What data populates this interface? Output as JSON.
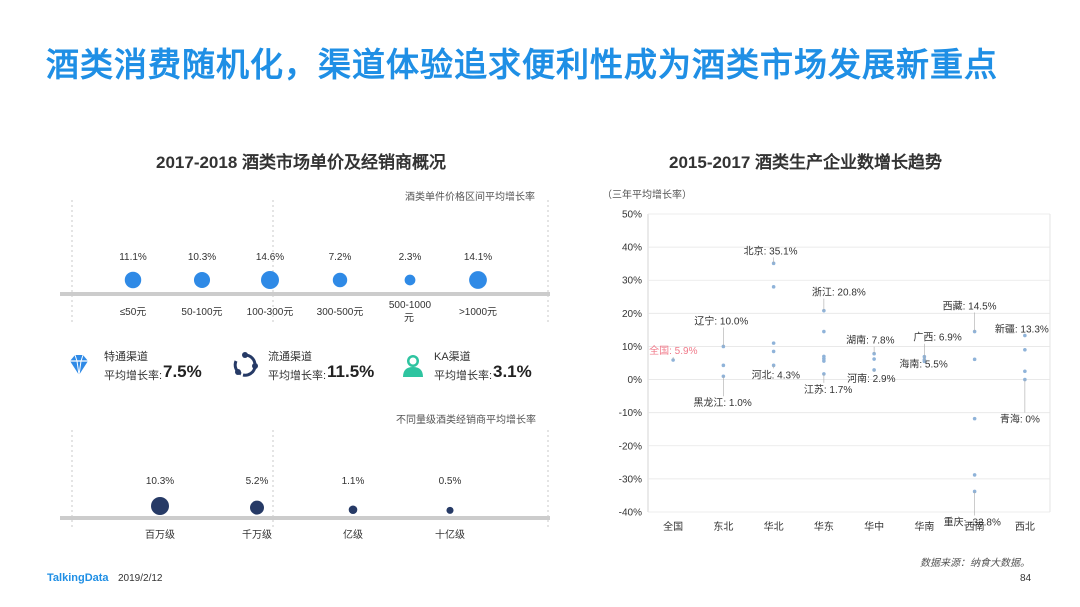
{
  "title": "酒类消费随机化，渠道体验追求便利性成为酒类市场发展新重点",
  "left_panel": {
    "title": "2017-2018  酒类市场单价及经销商概况",
    "price_chart_note": "酒类单件价格区间平均增长率",
    "dealer_chart_note": "不同量级酒类经销商平均增长率",
    "channels": [
      {
        "name": "特通渠道",
        "label": "平均增长率:",
        "value": "7.5%",
        "icon": "diamond-icon"
      },
      {
        "name": "流通渠道",
        "label": "平均增长率:",
        "value": "11.5%",
        "icon": "circulation-icon"
      },
      {
        "name": "KA渠道",
        "label": "平均增长率:",
        "value": "3.1%",
        "icon": "person-icon"
      }
    ]
  },
  "right_panel": {
    "title": "2015-2017  酒类生产企业数增长趋势",
    "ylabel": "（三年平均增长率）"
  },
  "footer": {
    "logo": "TalkingData",
    "date": "2019/2/12",
    "page": "84",
    "source": "数据来源：纳食大数据。"
  },
  "colors": {
    "accent": "#1f8fe5",
    "bubble_blue": "#2f8ae6",
    "bubble_navy": "#263a66",
    "dot": "#8fb3d9",
    "national": "#f07a8a"
  },
  "chart_data": [
    {
      "type": "scatter",
      "title": "",
      "categories": [
        "≤50元",
        "50-100元",
        "100-300元",
        "300-500元",
        "500-1000元",
        ">1000元"
      ],
      "values": [
        11.1,
        10.3,
        14.6,
        7.2,
        2.3,
        14.1
      ],
      "labels": [
        "11.1%",
        "10.3%",
        "14.6%",
        "7.2%",
        "2.3%",
        "14.1%"
      ]
    },
    {
      "type": "scatter",
      "title": "",
      "categories": [
        "百万级",
        "千万级",
        "亿级",
        "十亿级"
      ],
      "values": [
        10.3,
        5.2,
        1.1,
        0.5
      ],
      "labels": [
        "10.3%",
        "5.2%",
        "1.1%",
        "0.5%"
      ]
    },
    {
      "type": "scatter",
      "title": "",
      "categories": [
        "全国",
        "东北",
        "华北",
        "华东",
        "华中",
        "华南",
        "西南",
        "西北"
      ],
      "ylim": [
        -40,
        50
      ],
      "ytick_labels": [
        "50%",
        "40%",
        "30%",
        "20%",
        "10%",
        "0%",
        "-10%",
        "-20%",
        "-30%",
        "-40%"
      ],
      "ytick_values": [
        50,
        40,
        30,
        20,
        10,
        0,
        -10,
        -20,
        -30,
        -40
      ],
      "points": [
        {
          "cat": 0,
          "y": 5.9
        },
        {
          "cat": 1,
          "y": 10.0
        },
        {
          "cat": 1,
          "y": 4.3
        },
        {
          "cat": 1,
          "y": 1.0
        },
        {
          "cat": 2,
          "y": 35.1
        },
        {
          "cat": 2,
          "y": 28.0
        },
        {
          "cat": 2,
          "y": 11.0
        },
        {
          "cat": 2,
          "y": 8.5
        },
        {
          "cat": 2,
          "y": 4.3
        },
        {
          "cat": 3,
          "y": 20.8
        },
        {
          "cat": 3,
          "y": 14.5
        },
        {
          "cat": 3,
          "y": 7.0
        },
        {
          "cat": 3,
          "y": 6.3
        },
        {
          "cat": 3,
          "y": 5.6
        },
        {
          "cat": 3,
          "y": 1.7
        },
        {
          "cat": 4,
          "y": 7.8
        },
        {
          "cat": 4,
          "y": 6.2
        },
        {
          "cat": 4,
          "y": 2.9
        },
        {
          "cat": 5,
          "y": 6.9
        },
        {
          "cat": 5,
          "y": 6.0
        },
        {
          "cat": 5,
          "y": 5.5
        },
        {
          "cat": 6,
          "y": 14.5
        },
        {
          "cat": 6,
          "y": 6.1
        },
        {
          "cat": 6,
          "y": -11.8
        },
        {
          "cat": 6,
          "y": -28.8
        },
        {
          "cat": 6,
          "y": -33.8
        },
        {
          "cat": 7,
          "y": 13.3
        },
        {
          "cat": 7,
          "y": 9.0
        },
        {
          "cat": 7,
          "y": 2.5
        },
        {
          "cat": 7,
          "y": 0.0
        }
      ],
      "annotations": [
        {
          "text": "全国: 5.9%",
          "cat": 0,
          "y": 5.9,
          "highlight": true
        },
        {
          "text": "辽宁: 10.0%",
          "cat": 1,
          "y": 10.0
        },
        {
          "text": "河北: 4.3%",
          "cat": 2,
          "y": 4.3
        },
        {
          "text": "黑龙江: 1.0%",
          "cat": 1,
          "y": 1.0
        },
        {
          "text": "北京: 35.1%",
          "cat": 2,
          "y": 35.1
        },
        {
          "text": "浙江: 20.8%",
          "cat": 3,
          "y": 20.8
        },
        {
          "text": "江苏: 1.7%",
          "cat": 3,
          "y": 1.7
        },
        {
          "text": "湖南: 7.8%",
          "cat": 4,
          "y": 7.8
        },
        {
          "text": "河南: 2.9%",
          "cat": 4,
          "y": 2.9
        },
        {
          "text": "广西: 6.9%",
          "cat": 5,
          "y": 6.9
        },
        {
          "text": "海南: 5.5%",
          "cat": 5,
          "y": 5.5
        },
        {
          "text": "西藏: 14.5%",
          "cat": 6,
          "y": 14.5
        },
        {
          "text": "重庆: -33.8%",
          "cat": 6,
          "y": -33.8
        },
        {
          "text": "新疆: 13.3%",
          "cat": 7,
          "y": 13.3
        },
        {
          "text": "青海: 0%",
          "cat": 7,
          "y": 0.0
        }
      ]
    }
  ]
}
